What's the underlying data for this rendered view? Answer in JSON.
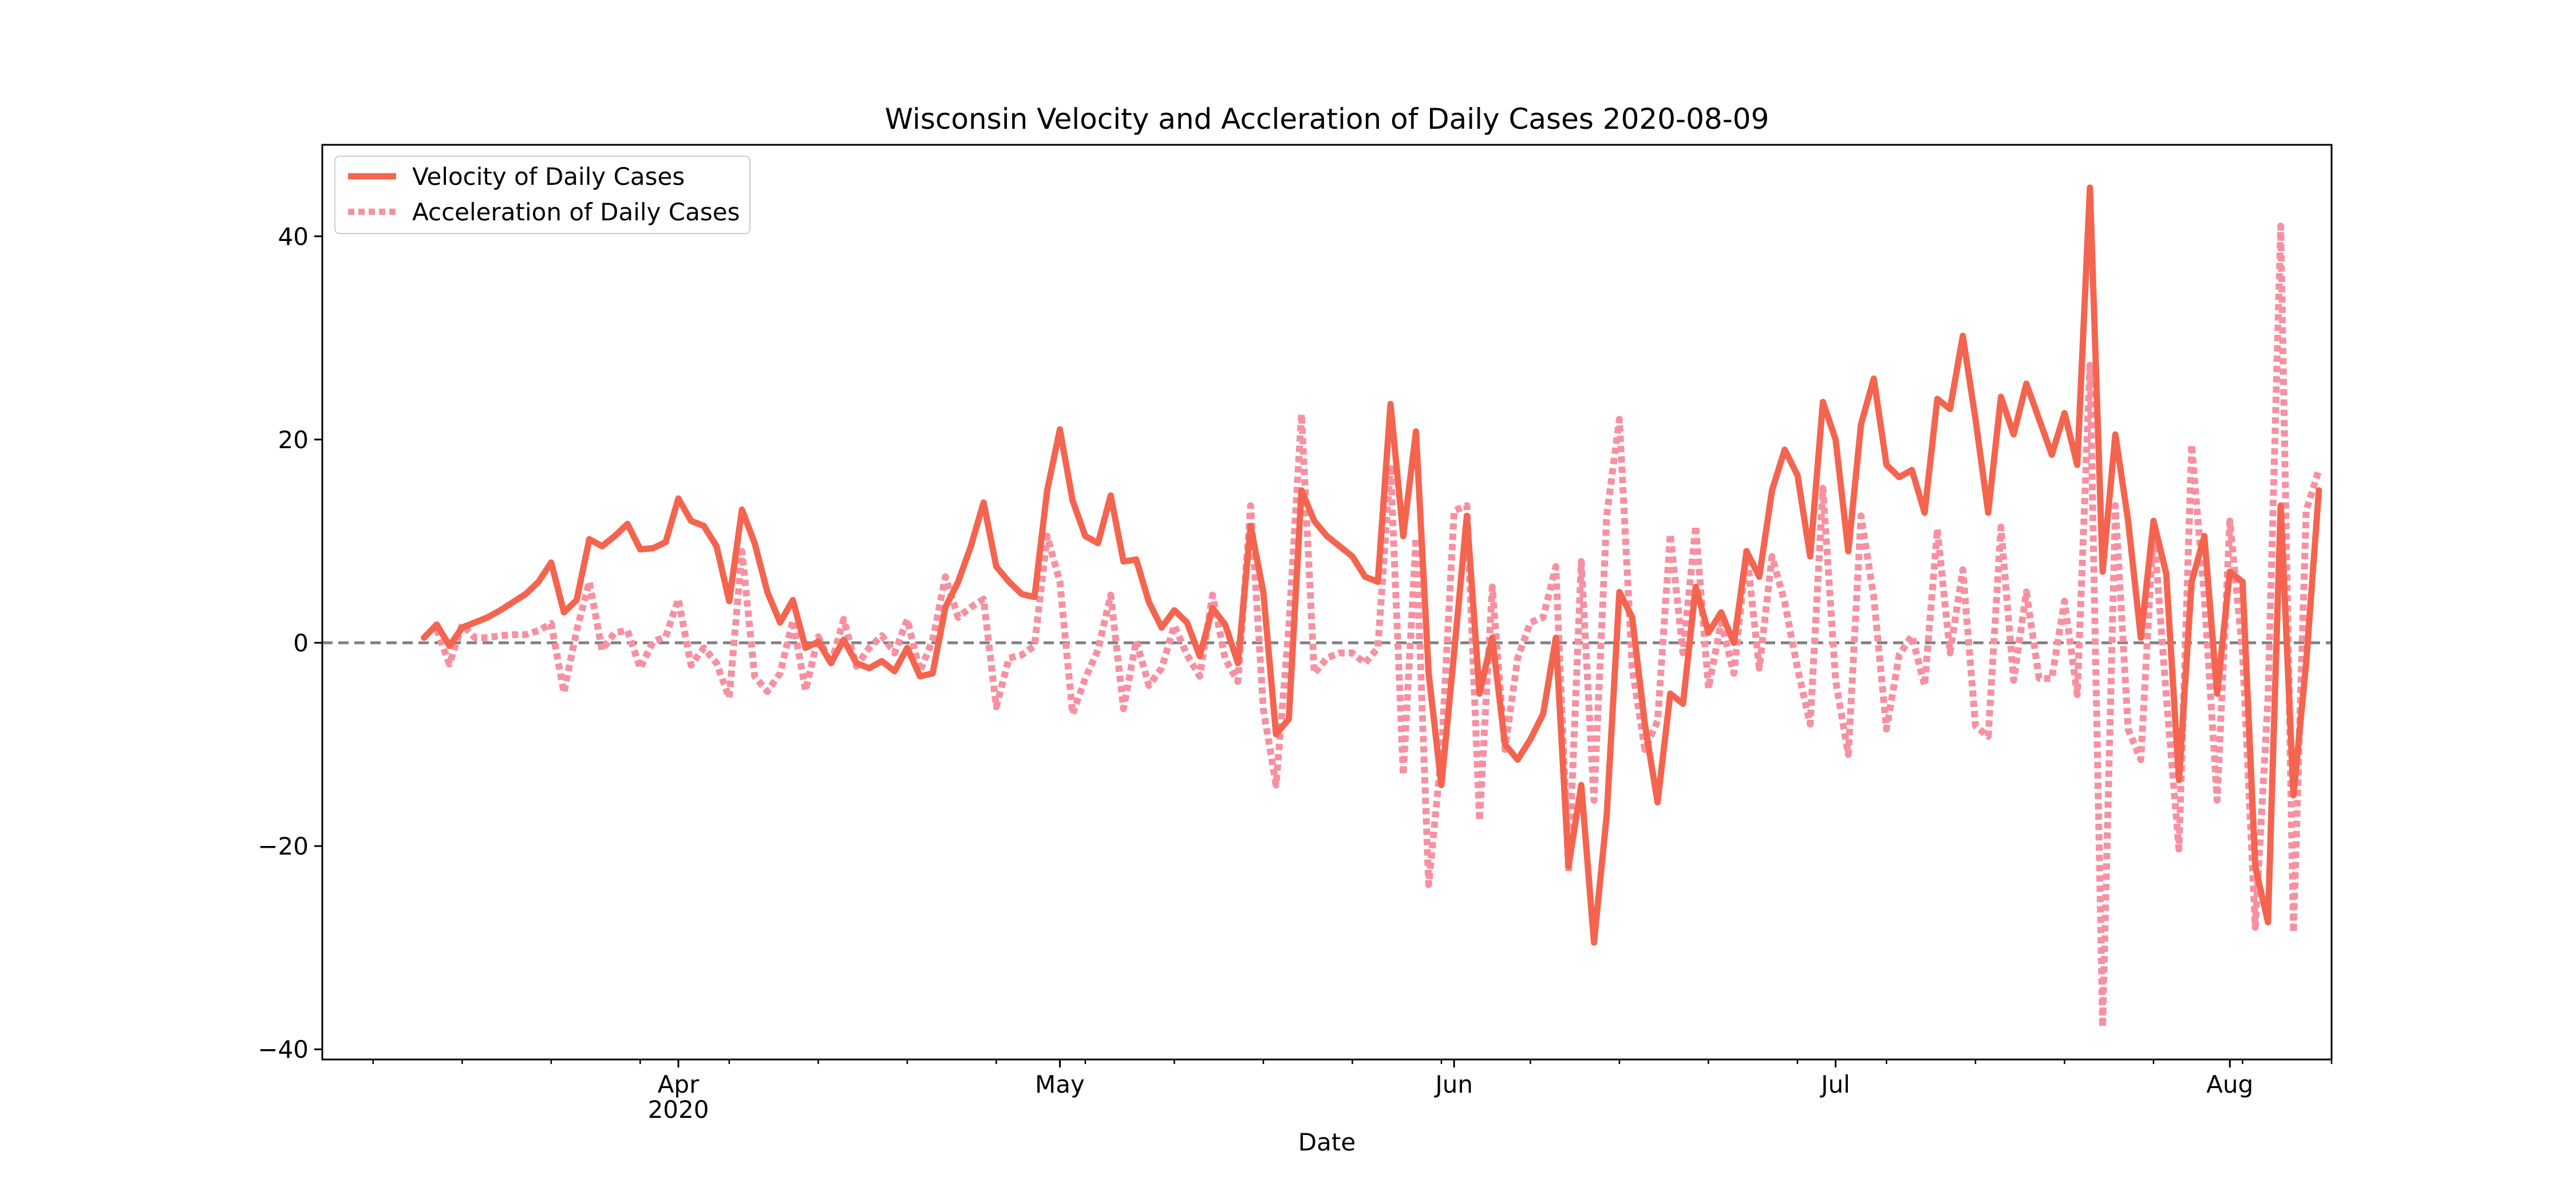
{
  "chart_data": {
    "type": "line",
    "title": "Wisconsin Velocity and Accleration of Daily Cases 2020-08-09",
    "xlabel": "Date",
    "ylabel": "",
    "x_start": "2020-03-04",
    "x_end": "2020-08-09",
    "ylim": [
      -41,
      49
    ],
    "yticks": [
      40,
      20,
      0,
      -20,
      -40
    ],
    "ytick_labels": [
      "40",
      "20",
      "0",
      "−20",
      "−40"
    ],
    "xticks": [
      {
        "date": "2020-04-01",
        "label": "Apr",
        "sublabel": "2020"
      },
      {
        "date": "2020-05-01",
        "label": "May",
        "sublabel": ""
      },
      {
        "date": "2020-06-01",
        "label": "Jun",
        "sublabel": ""
      },
      {
        "date": "2020-07-01",
        "label": "Jul",
        "sublabel": ""
      },
      {
        "date": "2020-08-01",
        "label": "Aug",
        "sublabel": ""
      }
    ],
    "grid": false,
    "legend_position": "top-left",
    "zero_line": {
      "y": 0,
      "color": "#808080",
      "style": "dashed"
    },
    "series": [
      {
        "name": "Velocity of Daily Cases",
        "color": "#f4644f",
        "style": "solid",
        "x_start": "2020-03-12",
        "values": [
          0.5,
          1.8,
          -0.3,
          1.5,
          2.0,
          2.5,
          3.2,
          4.0,
          4.8,
          6.0,
          7.9,
          3.0,
          4.2,
          10.2,
          9.5,
          10.5,
          11.7,
          9.2,
          9.3,
          9.9,
          14.2,
          12.0,
          11.5,
          9.5,
          4.1,
          13.1,
          9.8,
          5.0,
          2.0,
          4.2,
          -0.5,
          0.1,
          -2.0,
          0.3,
          -2.0,
          -2.5,
          -1.8,
          -2.8,
          -0.5,
          -3.3,
          -3.0,
          3.5,
          6.0,
          9.5,
          13.8,
          7.5,
          6.0,
          4.8,
          4.5,
          15.0,
          21.0,
          14.0,
          10.5,
          9.8,
          14.5,
          8.0,
          8.2,
          4.0,
          1.5,
          3.2,
          2.0,
          -1.3,
          3.4,
          1.8,
          -2.0,
          11.5,
          5.0,
          -9.0,
          -7.5,
          15.0,
          12.0,
          10.5,
          9.5,
          8.5,
          6.5,
          6.0,
          23.5,
          10.5,
          20.8,
          -3.0,
          -14.0,
          -1.0,
          12.5,
          -5.0,
          0.5,
          -10.0,
          -11.5,
          -9.5,
          -7.0,
          0.5,
          -22.0,
          -14.0,
          -29.5,
          -17.0,
          5.0,
          2.5,
          -8.0,
          -15.7,
          -5.0,
          -6.0,
          5.5,
          1.0,
          3.0,
          0.0,
          9.0,
          6.5,
          15.0,
          19.0,
          16.5,
          8.5,
          23.7,
          20.0,
          9.0,
          21.5,
          26.0,
          17.5,
          16.3,
          17.0,
          12.8,
          24.0,
          23.0,
          30.2,
          22.0,
          12.8,
          24.2,
          20.5,
          25.5,
          22.0,
          18.5,
          22.6,
          17.5,
          44.8,
          7.0,
          20.5,
          12.0,
          0.5,
          12.0,
          6.8,
          -13.5,
          6.0,
          10.5,
          -5.0,
          7.0,
          6.0,
          -22.0,
          -27.5,
          13.5,
          -15.0,
          -2.0,
          15.0
        ]
      },
      {
        "name": "Acceleration of Daily Cases",
        "color": "#f790a0",
        "style": "dotted",
        "x_start": "2020-03-13",
        "values": [
          1.3,
          -2.1,
          1.8,
          0.5,
          0.5,
          0.7,
          0.8,
          0.8,
          1.2,
          1.9,
          -4.9,
          1.2,
          6.0,
          -0.7,
          1.0,
          1.2,
          -2.5,
          0.1,
          0.6,
          4.3,
          -2.2,
          -0.5,
          -2.0,
          -5.4,
          9.0,
          -3.3,
          -4.8,
          -3.0,
          2.2,
          -4.7,
          0.6,
          -2.1,
          2.3,
          -2.3,
          -0.5,
          0.7,
          -1.0,
          2.3,
          -2.8,
          0.3,
          6.5,
          2.5,
          3.5,
          4.3,
          -6.3,
          -1.5,
          -1.2,
          -0.3,
          10.5,
          6.0,
          -7.0,
          -3.5,
          -0.7,
          4.7,
          -6.5,
          0.2,
          -4.2,
          -2.5,
          1.7,
          -1.2,
          -3.3,
          4.7,
          -1.6,
          -3.8,
          13.5,
          -6.5,
          -14.0,
          1.5,
          22.5,
          -3.0,
          -1.5,
          -1.0,
          -1.0,
          -2.0,
          -0.5,
          17.5,
          -13.0,
          10.3,
          -23.8,
          -11.0,
          13.0,
          13.5,
          -17.5,
          5.5,
          -10.5,
          -1.5,
          2.0,
          2.5,
          7.5,
          -22.5,
          8.0,
          -15.5,
          12.5,
          22.0,
          -2.5,
          -10.5,
          -7.7,
          10.7,
          -1.0,
          11.5,
          -4.5,
          2.0,
          -3.0,
          9.0,
          -2.5,
          8.5,
          4.0,
          -2.5,
          -8.0,
          15.2,
          -3.7,
          -11.0,
          12.5,
          4.5,
          -8.5,
          -1.2,
          0.7,
          -4.2,
          11.2,
          -1.0,
          7.2,
          -8.2,
          -9.2,
          11.4,
          -3.7,
          5.0,
          -3.5,
          -3.5,
          4.1,
          -5.1,
          27.3,
          -37.8,
          13.5,
          -8.5,
          -11.5,
          11.5,
          -5.2,
          -20.3,
          19.5,
          4.5,
          -15.5,
          12.0,
          -1.0,
          -28.0,
          -5.5,
          41.0,
          -28.5,
          13.0,
          17.0
        ]
      }
    ]
  }
}
